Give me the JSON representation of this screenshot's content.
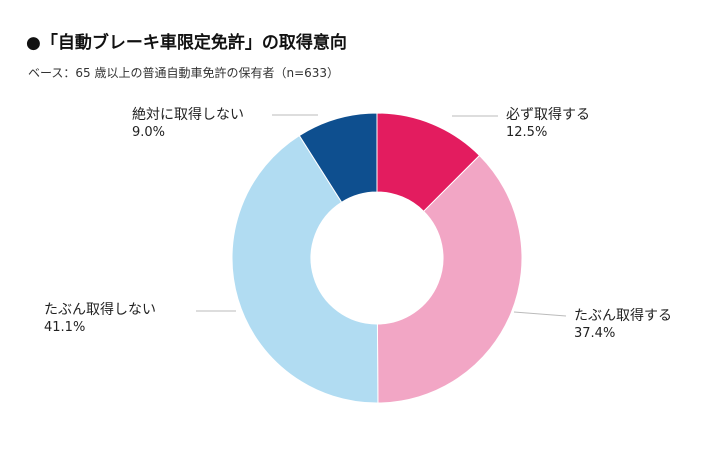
{
  "title": "●「自動ブレーキ車限定免許」の取得意向",
  "subtitle": "ベース：65 歳以上の普通自動車免許の保有者（n=633）",
  "chart_data": {
    "type": "pie",
    "donut": true,
    "categories": [
      "必ず取得する",
      "たぶん取得する",
      "たぶん取得しない",
      "絶対に取得しない"
    ],
    "values": [
      12.5,
      37.4,
      41.1,
      9.0
    ],
    "value_labels": [
      "12.5%",
      "37.4%",
      "41.1%",
      "9.0%"
    ],
    "colors": [
      "#e31c5f",
      "#f2a6c5",
      "#b1dcf2",
      "#0e4f8f"
    ],
    "unit": "%"
  }
}
